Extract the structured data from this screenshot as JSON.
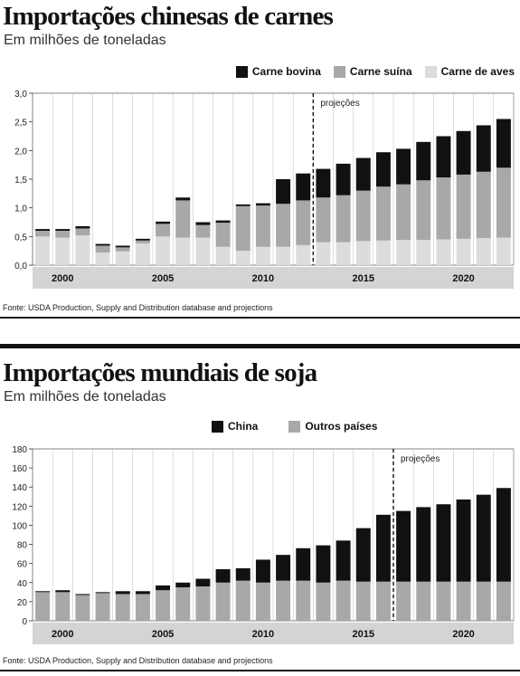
{
  "charts": [
    {
      "title": "Importações chinesas de carnes",
      "subtitle": "Em milhões de toneladas",
      "source": "Fonte: USDA Production, Supply and Distribution database and projections",
      "projection_label": "projeções",
      "colors": {
        "Carne bovina": "#111111",
        "Carne suína": "#a8a8a8",
        "Carne de aves": "#dcdcdc",
        "Outros países": "#a8a8a8",
        "China": "#111111"
      }
    },
    {
      "title": "Importações mundiais de soja",
      "subtitle": "Em milhões de toneladas",
      "source": "Fonte: USDA Production, Supply and Distribution database and projections",
      "projection_label": "projeções"
    }
  ],
  "chart_data": [
    {
      "type": "bar",
      "stacked": true,
      "title": "Importações chinesas de carnes",
      "ylim": [
        0,
        3.0
      ],
      "yticks": [
        "0,0",
        "0,5",
        "1,0",
        "1,5",
        "2,0",
        "2,5",
        "3,0"
      ],
      "x_tick_labels": [
        "2000",
        "2005",
        "2010",
        "2015",
        "2020"
      ],
      "categories": [
        1999,
        2000,
        2001,
        2002,
        2003,
        2004,
        2005,
        2006,
        2007,
        2008,
        2009,
        2010,
        2011,
        2012,
        2013,
        2014,
        2015,
        2016,
        2017,
        2018,
        2019,
        2020,
        2021,
        2022
      ],
      "projection_start": 2013,
      "grid": false,
      "legend": "top-right",
      "series": [
        {
          "name": "Carne de aves",
          "color": "#dcdcdc",
          "values": [
            0.5,
            0.48,
            0.52,
            0.22,
            0.24,
            0.38,
            0.5,
            0.48,
            0.48,
            0.32,
            0.25,
            0.32,
            0.32,
            0.35,
            0.4,
            0.4,
            0.42,
            0.43,
            0.44,
            0.44,
            0.45,
            0.46,
            0.47,
            0.48
          ]
        },
        {
          "name": "Carne suína",
          "color": "#a8a8a8",
          "values": [
            0.1,
            0.12,
            0.12,
            0.12,
            0.07,
            0.05,
            0.22,
            0.65,
            0.22,
            0.42,
            0.78,
            0.72,
            0.75,
            0.78,
            0.78,
            0.82,
            0.88,
            0.94,
            0.97,
            1.04,
            1.08,
            1.12,
            1.16,
            1.22
          ]
        },
        {
          "name": "Carne bovina",
          "color": "#111111",
          "values": [
            0.03,
            0.03,
            0.04,
            0.03,
            0.03,
            0.03,
            0.04,
            0.05,
            0.05,
            0.04,
            0.03,
            0.04,
            0.43,
            0.47,
            0.5,
            0.55,
            0.57,
            0.6,
            0.62,
            0.67,
            0.72,
            0.76,
            0.81,
            0.85
          ]
        }
      ]
    },
    {
      "type": "bar",
      "stacked": true,
      "title": "Importações mundiais de soja",
      "ylim": [
        0,
        180
      ],
      "yticks": [
        "0",
        "20",
        "40",
        "60",
        "80",
        "100",
        "120",
        "140",
        "160",
        "180"
      ],
      "x_tick_labels": [
        "2000",
        "2005",
        "2010",
        "2015",
        "2020"
      ],
      "categories": [
        1999,
        2000,
        2001,
        2002,
        2003,
        2004,
        2005,
        2006,
        2007,
        2008,
        2009,
        2010,
        2011,
        2012,
        2013,
        2014,
        2015,
        2016,
        2017,
        2018,
        2019,
        2020,
        2021,
        2022
      ],
      "projection_start": 2017,
      "grid": false,
      "legend": "top-right",
      "series": [
        {
          "name": "Outros países",
          "color": "#a8a8a8",
          "values": [
            30,
            30,
            27,
            29,
            28,
            28,
            32,
            35,
            36,
            40,
            42,
            40,
            42,
            42,
            40,
            42,
            41,
            41,
            41,
            41,
            41,
            41,
            41,
            41
          ]
        },
        {
          "name": "China",
          "color": "#111111",
          "values": [
            1,
            2,
            1,
            1,
            3,
            3,
            5,
            5,
            8,
            14,
            13,
            24,
            27,
            34,
            39,
            42,
            56,
            70,
            74,
            78,
            81,
            86,
            91,
            98
          ]
        }
      ]
    }
  ]
}
